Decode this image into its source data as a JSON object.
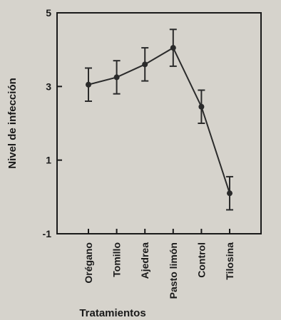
{
  "chart_data": {
    "type": "line",
    "title": "",
    "xlabel": "Tratamientos",
    "ylabel": "Nivel de infección",
    "categories": [
      "Orégano",
      "Tomillo",
      "Ajedrea",
      "Pasto limón",
      "Control",
      "Tilosina"
    ],
    "series": [
      {
        "values": [
          3.05,
          3.25,
          3.6,
          4.05,
          2.45,
          0.1
        ],
        "errors": [
          0.45,
          0.45,
          0.45,
          0.5,
          0.45,
          0.45
        ]
      }
    ],
    "ylim": [
      -1,
      5
    ],
    "yticks": [
      "5",
      "3",
      "1",
      "-1"
    ],
    "grid": false,
    "legend": "none",
    "colors": {
      "line": "#2b2b2b",
      "background": "#d6d3cc",
      "axis": "#1a1a1a"
    }
  }
}
